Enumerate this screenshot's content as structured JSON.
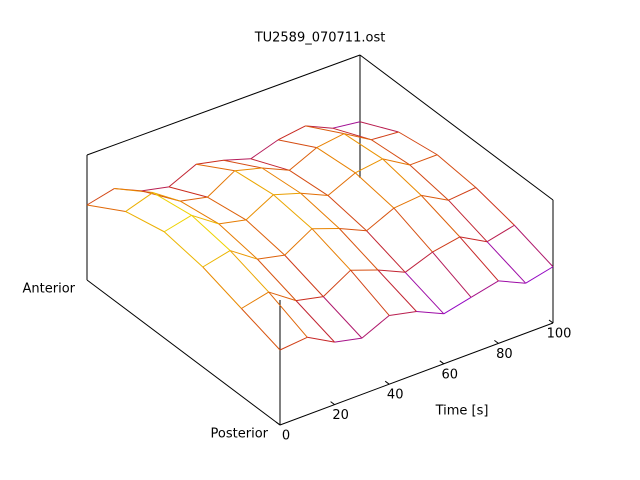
{
  "chart_data": {
    "type": "surface",
    "title": "TU2589_070711.ost",
    "xlabel": "Time [s]",
    "x": [
      0,
      10,
      20,
      30,
      40,
      50,
      60,
      70,
      80,
      90,
      100
    ],
    "xlim": [
      0,
      100
    ],
    "xticks": [
      0,
      20,
      40,
      60,
      80,
      100
    ],
    "ycategories": [
      "Posterior",
      null,
      null,
      null,
      null,
      "Anterior"
    ],
    "zlim": [
      0,
      1
    ],
    "palette": [
      "#8a00e0",
      "#c8281e",
      "#e88000",
      "#f0e000"
    ],
    "series": [
      {
        "values": [
          0.6,
          0.62,
          0.5,
          0.45,
          0.55,
          0.5,
          0.4,
          0.45,
          0.5,
          0.4,
          0.45
        ]
      },
      {
        "values": [
          0.7,
          0.75,
          0.6,
          0.55,
          0.68,
          0.6,
          0.5,
          0.58,
          0.62,
          0.5,
          0.55
        ]
      },
      {
        "values": [
          0.8,
          0.85,
          0.7,
          0.65,
          0.78,
          0.7,
          0.6,
          0.7,
          0.72,
          0.6,
          0.62
        ]
      },
      {
        "values": [
          0.85,
          0.9,
          0.75,
          0.7,
          0.82,
          0.75,
          0.65,
          0.75,
          0.78,
          0.65,
          0.65
        ]
      },
      {
        "values": [
          0.78,
          0.85,
          0.7,
          0.65,
          0.78,
          0.72,
          0.62,
          0.72,
          0.75,
          0.62,
          0.6
        ]
      },
      {
        "values": [
          0.6,
          0.65,
          0.55,
          0.5,
          0.6,
          0.55,
          0.48,
          0.55,
          0.58,
          0.48,
          0.45
        ]
      }
    ]
  }
}
